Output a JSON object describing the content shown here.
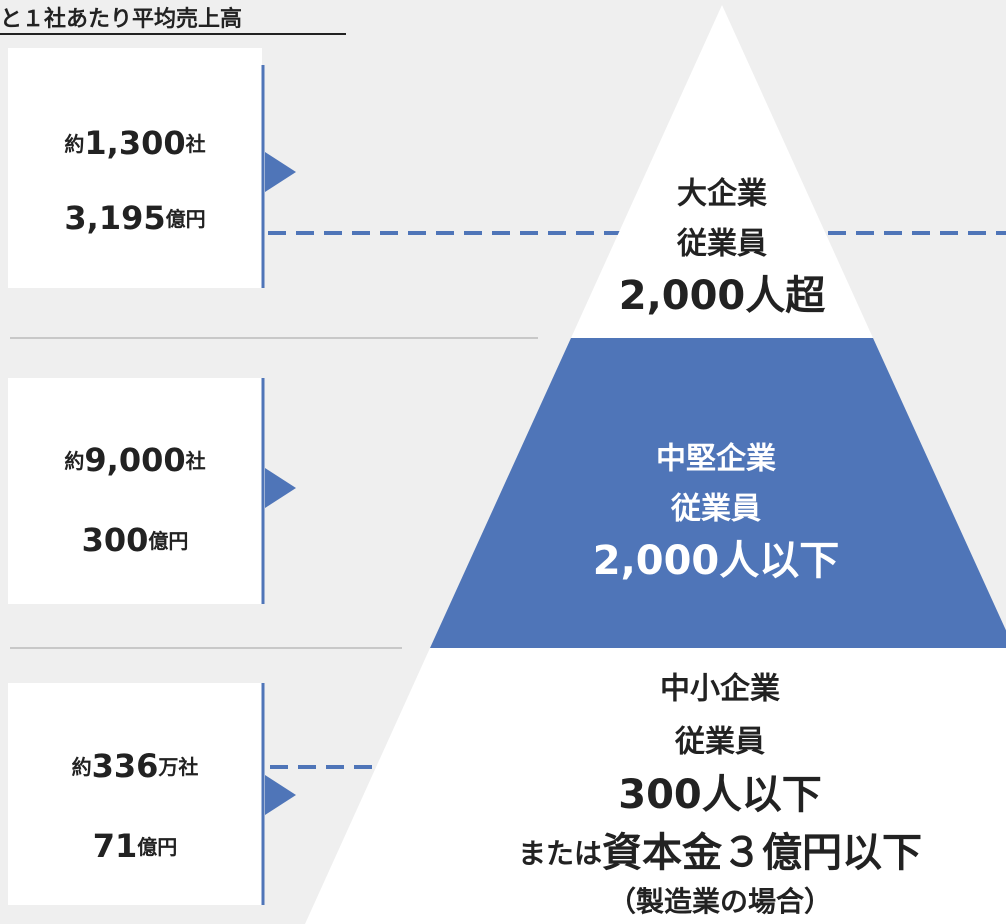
{
  "header": {
    "title": "と１社あたり平均売上高"
  },
  "boxes": [
    {
      "prefix": "約",
      "count": "1,300",
      "count_unit": "社",
      "sales": "3,195",
      "sales_unit": "億円"
    },
    {
      "prefix": "約",
      "count": "9,000",
      "count_unit": "社",
      "sales": "300",
      "sales_unit": "億円"
    },
    {
      "prefix": "約",
      "count": "336",
      "count_unit": "万社",
      "sales": "71",
      "sales_unit": "億円"
    }
  ],
  "pyramid": [
    {
      "name": "大企業",
      "sub": "従業員",
      "size": "2,000人超"
    },
    {
      "name": "中堅企業",
      "sub": "従業員",
      "size": "2,000人以下"
    },
    {
      "name": "中小企業",
      "sub": "従業員",
      "size": "300人以下",
      "alt_prefix": "または",
      "alt": "資本金３億円以下",
      "note": "（製造業の場合）"
    }
  ]
}
